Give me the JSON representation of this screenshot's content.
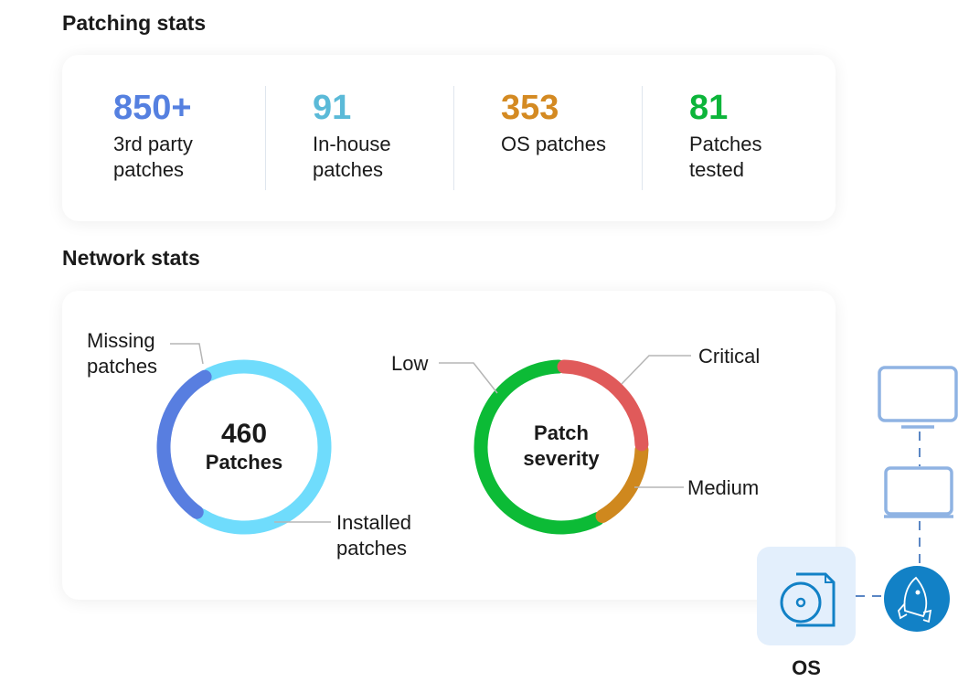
{
  "patching": {
    "title": "Patching stats",
    "stats": [
      {
        "value": "850+",
        "label": "3rd party patches",
        "color": "#5580e0"
      },
      {
        "value": "91",
        "label": "In-house patches",
        "color": "#5bbad8"
      },
      {
        "value": "353",
        "label": "OS patches",
        "color": "#d48a22"
      },
      {
        "value": "81",
        "label": "Patches tested",
        "color": "#0cb53a"
      }
    ]
  },
  "network": {
    "title": "Network stats"
  },
  "chart_data": [
    {
      "type": "pie",
      "center_value": "460",
      "center_label": "Patches",
      "slices": [
        {
          "name": "Missing patches",
          "fraction": 0.33,
          "color": "#587ee0"
        },
        {
          "name": "Installed patches",
          "fraction": 0.67,
          "color": "#6fdcfc"
        }
      ]
    },
    {
      "type": "pie",
      "center_label": "Patch severity",
      "slices": [
        {
          "name": "Critical",
          "fraction": 0.25,
          "color": "#e05a5a"
        },
        {
          "name": "Medium",
          "fraction": 0.17,
          "color": "#cf881e"
        },
        {
          "name": "Low",
          "fraction": 0.58,
          "color": "#0cbb36"
        }
      ]
    }
  ],
  "diagram": {
    "os_label": "OS",
    "icons": [
      "monitor-icon",
      "laptop-icon",
      "rocket-icon",
      "os-disc-file-icon"
    ],
    "colors": {
      "device": "#8fb3e3",
      "accent": "#1281c6",
      "os_bg": "#e3effc"
    }
  }
}
